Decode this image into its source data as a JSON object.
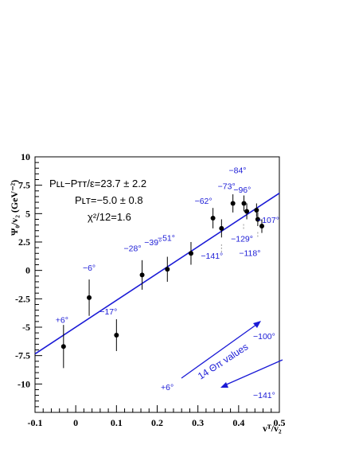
{
  "chart_data": {
    "type": "scatter",
    "xlabel": "vᵀ/v₂",
    "ylabel": "Ψ₀/v₂ (GeV⁻²)",
    "xlim": [
      -0.1,
      0.5
    ],
    "ylim": [
      -12.5,
      10
    ],
    "x_ticks": [
      -0.1,
      0,
      0.1,
      0.2,
      0.3,
      0.4,
      0.5
    ],
    "x_tick_labels": [
      "-0.1",
      "0",
      "0.1",
      "0.2",
      "0.3",
      "0.4",
      "0.5"
    ],
    "y_ticks": [
      10,
      7.5,
      5,
      2.5,
      0,
      -2.5,
      -5,
      -7.5,
      -10
    ],
    "y_tick_labels": [
      "10",
      "7.5",
      "5",
      "2.5",
      "0",
      "-2.5",
      "-5",
      "-7.5",
      "-10"
    ],
    "grid": false,
    "points": [
      {
        "x": -0.03,
        "y": -6.7,
        "err": 1.9,
        "label": "+6°"
      },
      {
        "x": 0.033,
        "y": -2.4,
        "err": 1.6,
        "label": "−6°"
      },
      {
        "x": 0.1,
        "y": -5.7,
        "err": 1.4,
        "label": "−17°"
      },
      {
        "x": 0.163,
        "y": -0.4,
        "err": 1.3,
        "label": "−28°"
      },
      {
        "x": 0.225,
        "y": 0.1,
        "err": 1.1,
        "label": "−39°"
      },
      {
        "x": 0.283,
        "y": 1.5,
        "err": 1.0,
        "label": "−51°"
      },
      {
        "x": 0.337,
        "y": 4.6,
        "err": 0.9,
        "label": "−62°"
      },
      {
        "x": 0.358,
        "y": 3.7,
        "err": 0.8,
        "label": "−141°"
      },
      {
        "x": 0.386,
        "y": 5.9,
        "err": 0.8,
        "label": "−73°"
      },
      {
        "x": 0.413,
        "y": 5.9,
        "err": 0.7,
        "label": "−84°"
      },
      {
        "x": 0.42,
        "y": 5.2,
        "err": 0.7,
        "label": "−129°"
      },
      {
        "x": 0.444,
        "y": 5.3,
        "err": 0.6,
        "label": "−96°"
      },
      {
        "x": 0.447,
        "y": 4.5,
        "err": 0.6,
        "label": "−118°"
      },
      {
        "x": 0.457,
        "y": 3.9,
        "err": 0.6,
        "label": "−107°"
      }
    ],
    "fit_line": {
      "x": [
        -0.1,
        0.5
      ],
      "y": [
        -7.35,
        6.8
      ]
    },
    "annotations": {
      "fit_line1": "Pʟʟ−Pᴛᴛ/ε=23.7 ± 2.2",
      "fit_line2": "Pʟᴛ=−5.0 ± 0.8",
      "fit_line3": "χ²/12=1.6",
      "legend_label": "14 Θπ values",
      "arrow_start": "+6°",
      "arrow_up_end": "−100°",
      "arrow_down_end": "−141°"
    }
  },
  "colors": {
    "axis": "#000000",
    "fit_line": "#1a1ad6",
    "point": "#000000",
    "label": "#1a1ad6"
  }
}
